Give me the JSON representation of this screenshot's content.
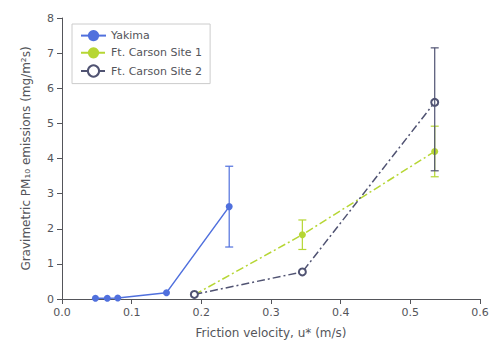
{
  "chart_data": {
    "type": "line",
    "xlabel": "Friction velocity, u* (m/s)",
    "ylabel": "Gravimetric PM₁₀ emissions (mg/m²s)",
    "xlim": [
      0.0,
      0.6
    ],
    "xticks": [
      {
        "value": 0.0,
        "label": "0.0"
      },
      0.1,
      0.2,
      0.3,
      0.4,
      0.5,
      0.6
    ],
    "ylim": [
      0.0,
      8.0
    ],
    "yticks": [
      0,
      1,
      2,
      3,
      4,
      5,
      6,
      7,
      8
    ],
    "grid": false,
    "legend": "upper left",
    "series": [
      {
        "name": "Yakima",
        "marker": "circle",
        "line_style": "solid",
        "x": [
          0.048,
          0.065,
          0.08,
          0.15,
          0.24
        ],
        "values": [
          0.02,
          0.02,
          0.03,
          0.18,
          2.63
        ],
        "yerr_up": [
          null,
          null,
          null,
          null,
          1.15
        ],
        "yerr_dn": [
          null,
          null,
          null,
          null,
          1.15
        ]
      },
      {
        "name": "Ft. Carson Site 1",
        "marker": "circle",
        "line_style": "dashdot",
        "x": [
          0.19,
          0.345,
          0.535
        ],
        "values": [
          0.12,
          1.83,
          4.2
        ],
        "yerr_up": [
          null,
          0.42,
          0.72
        ],
        "yerr_dn": [
          null,
          0.42,
          0.72
        ]
      },
      {
        "name": "Ft. Carson Site 2",
        "marker": "open_circle",
        "line_style": "dashdot",
        "x": [
          0.19,
          0.345,
          0.535
        ],
        "values": [
          0.13,
          0.77,
          5.6
        ],
        "yerr_up": [
          null,
          null,
          1.55
        ],
        "yerr_dn": [
          null,
          null,
          1.95
        ]
      }
    ]
  }
}
